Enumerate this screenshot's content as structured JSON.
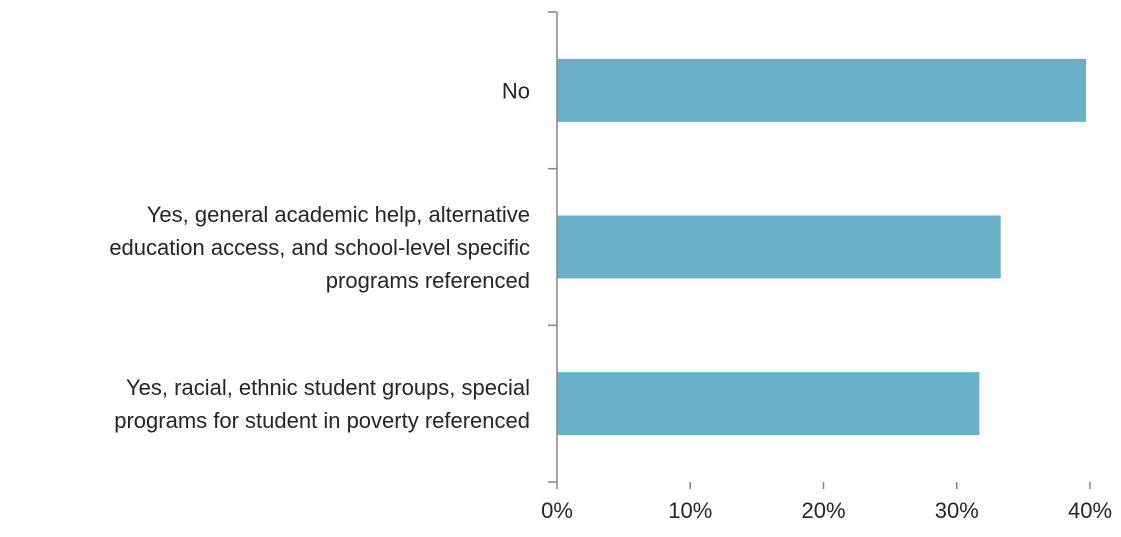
{
  "chart_data": {
    "type": "bar",
    "orientation": "horizontal",
    "categories": [
      "No",
      "Yes, general academic help, alternative education access, and school-level specific programs referenced",
      "Yes, racial, ethnic student groups, special programs for student in poverty referenced"
    ],
    "category_lines": [
      [
        "No"
      ],
      [
        "Yes, general academic help, alternative",
        "education access, and school-level specific",
        "programs referenced"
      ],
      [
        "Yes, racial, ethnic student groups, special",
        "programs for student in poverty referenced"
      ]
    ],
    "values": [
      0.397,
      0.333,
      0.317
    ],
    "xlim": [
      0,
      0.4
    ],
    "x_ticks": [
      0,
      0.1,
      0.2,
      0.3,
      0.4
    ],
    "x_tick_labels": [
      "0%",
      "10%",
      "20%",
      "30%",
      "40%"
    ],
    "bar_color": "#6ab0c8",
    "axis_color": "#868686",
    "grid": false,
    "legend": "none",
    "title": "",
    "xlabel": "",
    "ylabel": ""
  }
}
